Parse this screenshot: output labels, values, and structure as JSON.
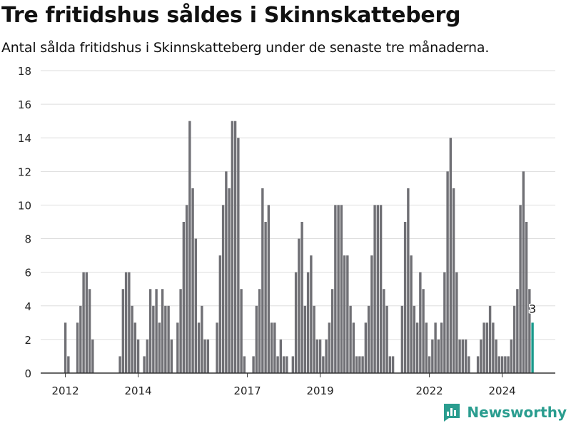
{
  "header": {
    "title": "Tre fritidshus såldes i Skinnskatteberg",
    "subtitle": "Antal sålda fritidshus i Skinnskatteberg under de senaste tre månaderna."
  },
  "brand": {
    "name": "Newsworthy",
    "icon": "bar-chart-logo-icon"
  },
  "colors": {
    "bar": "#707075",
    "highlight": "#1a9a8c",
    "grid": "#dddddd",
    "axis": "#333333"
  },
  "chart_data": {
    "type": "bar",
    "title": "Tre fritidshus såldes i Skinnskatteberg",
    "subtitle": "Antal sålda fritidshus i Skinnskatteberg under de senaste tre månaderna.",
    "xlabel": "",
    "ylabel": "",
    "ylim": [
      0,
      18
    ],
    "yticks": [
      0,
      2,
      4,
      6,
      8,
      10,
      12,
      14,
      16,
      18
    ],
    "grid": true,
    "xticks": [
      {
        "label": "2012",
        "index": 0
      },
      {
        "label": "2014",
        "index": 24
      },
      {
        "label": "2017",
        "index": 60
      },
      {
        "label": "2019",
        "index": 84
      },
      {
        "label": "2022",
        "index": 120
      },
      {
        "label": "2024",
        "index": 144
      }
    ],
    "series": [
      {
        "values": [
          3,
          1,
          0,
          0,
          3,
          4,
          6,
          6,
          5,
          2,
          0,
          0,
          0,
          0,
          0,
          0,
          0,
          0,
          1,
          5,
          6,
          6,
          4,
          3,
          2,
          0,
          1,
          2,
          5,
          4,
          5,
          3,
          5,
          4,
          4,
          2,
          0,
          3,
          5,
          9,
          10,
          15,
          11,
          8,
          3,
          4,
          2,
          2,
          0,
          0,
          3,
          7,
          10,
          12,
          11,
          15,
          15,
          14,
          5,
          1,
          0,
          0,
          1,
          4,
          5,
          11,
          9,
          10,
          3,
          3,
          1,
          2,
          1,
          1,
          0,
          1,
          6,
          8,
          9,
          4,
          6,
          7,
          4,
          2,
          2,
          1,
          2,
          3,
          5,
          10,
          10,
          10,
          7,
          7,
          4,
          3,
          1,
          1,
          1,
          3,
          4,
          7,
          10,
          10,
          10,
          5,
          4,
          1,
          1,
          0,
          0,
          4,
          9,
          11,
          7,
          4,
          3,
          6,
          5,
          3,
          1,
          2,
          3,
          2,
          3,
          6,
          12,
          14,
          11,
          6,
          2,
          2,
          2,
          1,
          0,
          0,
          1,
          2,
          3,
          3,
          4,
          3,
          2,
          1,
          1,
          1,
          1,
          2,
          4,
          5,
          10,
          12,
          9,
          5,
          3
        ]
      }
    ],
    "highlight": {
      "index": 154,
      "value": 3,
      "label": "3"
    }
  }
}
